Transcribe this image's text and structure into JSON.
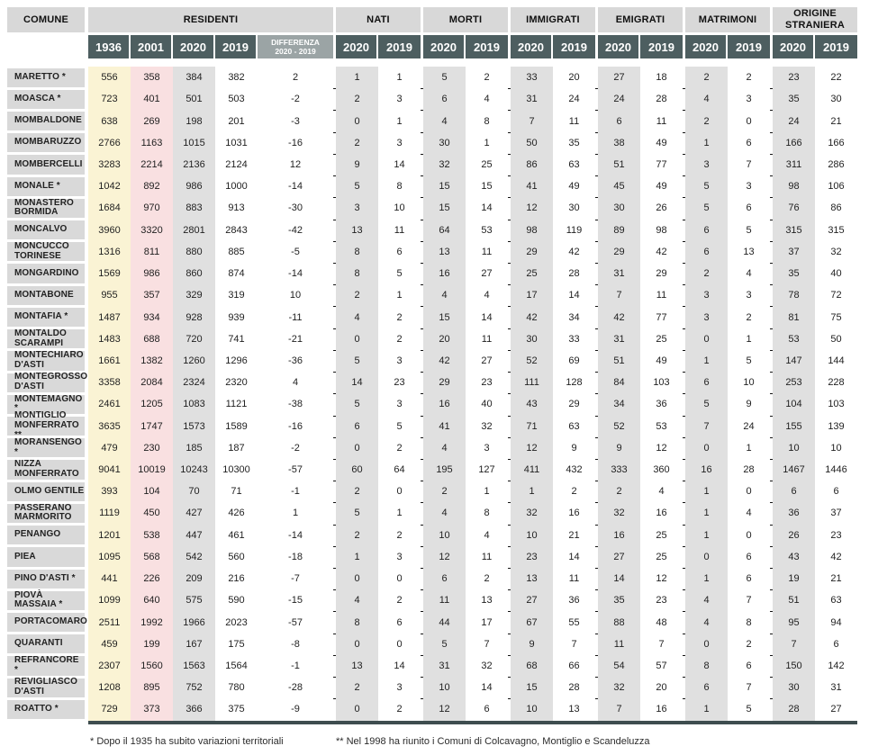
{
  "header": {
    "comune_label": "COMUNE",
    "groups": [
      {
        "label": "RESIDENTI",
        "years": [
          "1936",
          "2001",
          "2020",
          "2019"
        ],
        "diff_line1": "DIFFERENZA",
        "diff_line2": "2020 - 2019"
      },
      {
        "label": "NATI",
        "years": [
          "2020",
          "2019"
        ]
      },
      {
        "label": "MORTI",
        "years": [
          "2020",
          "2019"
        ]
      },
      {
        "label": "IMMIGRATI",
        "years": [
          "2020",
          "2019"
        ]
      },
      {
        "label": "EMIGRATI",
        "years": [
          "2020",
          "2019"
        ]
      },
      {
        "label": "MATRIMONI",
        "years": [
          "2020",
          "2019"
        ]
      },
      {
        "label": "ORIGINE STRANIERA",
        "years": [
          "2020",
          "2019"
        ]
      }
    ]
  },
  "rows": [
    {
      "comune": "MARETTO *",
      "values": [
        556,
        358,
        384,
        382,
        2,
        1,
        1,
        5,
        2,
        33,
        20,
        27,
        18,
        2,
        2,
        23,
        22
      ]
    },
    {
      "comune": "MOASCA *",
      "values": [
        723,
        401,
        501,
        503,
        -2,
        2,
        3,
        6,
        4,
        31,
        24,
        24,
        28,
        4,
        3,
        35,
        30
      ]
    },
    {
      "comune": "MOMBALDONE",
      "values": [
        638,
        269,
        198,
        201,
        -3,
        0,
        1,
        4,
        8,
        7,
        11,
        6,
        11,
        2,
        0,
        24,
        21
      ]
    },
    {
      "comune": "MOMBARUZZO",
      "values": [
        2766,
        1163,
        1015,
        1031,
        -16,
        2,
        3,
        30,
        1,
        50,
        35,
        38,
        49,
        1,
        6,
        166,
        166
      ]
    },
    {
      "comune": "MOMBERCELLI",
      "values": [
        3283,
        2214,
        2136,
        2124,
        12,
        9,
        14,
        32,
        25,
        86,
        63,
        51,
        77,
        3,
        7,
        311,
        286
      ]
    },
    {
      "comune": "MONALE *",
      "values": [
        1042,
        892,
        986,
        1000,
        -14,
        5,
        8,
        15,
        15,
        41,
        49,
        45,
        49,
        5,
        3,
        98,
        106
      ]
    },
    {
      "comune": "MONASTERO BORMIDA",
      "values": [
        1684,
        970,
        883,
        913,
        -30,
        3,
        10,
        15,
        14,
        12,
        30,
        30,
        26,
        5,
        6,
        76,
        86
      ]
    },
    {
      "comune": "MONCALVO",
      "values": [
        3960,
        3320,
        2801,
        2843,
        -42,
        13,
        11,
        64,
        53,
        98,
        119,
        89,
        98,
        6,
        5,
        315,
        315
      ]
    },
    {
      "comune": "MONCUCCO TORINESE",
      "values": [
        1316,
        811,
        880,
        885,
        -5,
        8,
        6,
        13,
        11,
        29,
        42,
        29,
        42,
        6,
        13,
        37,
        32
      ]
    },
    {
      "comune": "MONGARDINO",
      "values": [
        1569,
        986,
        860,
        874,
        -14,
        8,
        5,
        16,
        27,
        25,
        28,
        31,
        29,
        2,
        4,
        35,
        40
      ]
    },
    {
      "comune": "MONTABONE",
      "values": [
        955,
        357,
        329,
        319,
        10,
        2,
        1,
        4,
        4,
        17,
        14,
        7,
        11,
        3,
        3,
        78,
        72
      ]
    },
    {
      "comune": "MONTAFIA *",
      "values": [
        1487,
        934,
        928,
        939,
        -11,
        4,
        2,
        15,
        14,
        42,
        34,
        42,
        77,
        3,
        2,
        81,
        75
      ]
    },
    {
      "comune": "MONTALDO SCARAMPI",
      "values": [
        1483,
        688,
        720,
        741,
        -21,
        0,
        2,
        20,
        11,
        30,
        33,
        31,
        25,
        0,
        1,
        53,
        50
      ]
    },
    {
      "comune": "MONTECHIARO D'ASTI",
      "values": [
        1661,
        1382,
        1260,
        1296,
        -36,
        5,
        3,
        42,
        27,
        52,
        69,
        51,
        49,
        1,
        5,
        147,
        144
      ]
    },
    {
      "comune": "MONTEGROSSO D'ASTI",
      "values": [
        3358,
        2084,
        2324,
        2320,
        4,
        14,
        23,
        29,
        23,
        111,
        128,
        84,
        103,
        6,
        10,
        253,
        228
      ]
    },
    {
      "comune": "MONTEMAGNO *",
      "values": [
        2461,
        1205,
        1083,
        1121,
        -38,
        5,
        3,
        16,
        40,
        43,
        29,
        34,
        36,
        5,
        9,
        104,
        103
      ]
    },
    {
      "comune": "MONTIGLIO MONFERRATO **",
      "values": [
        3635,
        1747,
        1573,
        1589,
        -16,
        6,
        5,
        41,
        32,
        71,
        63,
        52,
        53,
        7,
        24,
        155,
        139
      ]
    },
    {
      "comune": "MORANSENGO *",
      "values": [
        479,
        230,
        185,
        187,
        -2,
        0,
        2,
        4,
        3,
        12,
        9,
        9,
        12,
        0,
        1,
        10,
        10
      ]
    },
    {
      "comune": "NIZZA MONFERRATO",
      "values": [
        9041,
        10019,
        10243,
        10300,
        -57,
        60,
        64,
        195,
        127,
        411,
        432,
        333,
        360,
        16,
        28,
        1467,
        1446
      ]
    },
    {
      "comune": "OLMO GENTILE",
      "values": [
        393,
        104,
        70,
        71,
        -1,
        2,
        0,
        2,
        1,
        1,
        2,
        2,
        4,
        1,
        0,
        6,
        6
      ]
    },
    {
      "comune": "PASSERANO MARMORITO",
      "values": [
        1119,
        450,
        427,
        426,
        1,
        5,
        1,
        4,
        8,
        32,
        16,
        32,
        16,
        1,
        4,
        36,
        37
      ]
    },
    {
      "comune": "PENANGO",
      "values": [
        1201,
        538,
        447,
        461,
        -14,
        2,
        2,
        10,
        4,
        10,
        21,
        16,
        25,
        1,
        0,
        26,
        23
      ]
    },
    {
      "comune": "PIEA",
      "values": [
        1095,
        568,
        542,
        560,
        -18,
        1,
        3,
        12,
        11,
        23,
        14,
        27,
        25,
        0,
        6,
        43,
        42
      ]
    },
    {
      "comune": "PINO D'ASTI *",
      "values": [
        441,
        226,
        209,
        216,
        -7,
        0,
        0,
        6,
        2,
        13,
        11,
        14,
        12,
        1,
        6,
        19,
        21
      ]
    },
    {
      "comune": "PIOVÀ MASSAIA *",
      "values": [
        1099,
        640,
        575,
        590,
        -15,
        4,
        2,
        11,
        13,
        27,
        36,
        35,
        23,
        4,
        7,
        51,
        63
      ]
    },
    {
      "comune": "PORTACOMARO",
      "values": [
        2511,
        1992,
        1966,
        2023,
        -57,
        8,
        6,
        44,
        17,
        67,
        55,
        88,
        48,
        4,
        8,
        95,
        94
      ]
    },
    {
      "comune": "QUARANTI",
      "values": [
        459,
        199,
        167,
        175,
        -8,
        0,
        0,
        5,
        7,
        9,
        7,
        11,
        7,
        0,
        2,
        7,
        6
      ]
    },
    {
      "comune": "REFRANCORE *",
      "values": [
        2307,
        1560,
        1563,
        1564,
        -1,
        13,
        14,
        31,
        32,
        68,
        66,
        54,
        57,
        8,
        6,
        150,
        142
      ]
    },
    {
      "comune": "REVIGLIASCO D'ASTI",
      "values": [
        1208,
        895,
        752,
        780,
        -28,
        2,
        3,
        10,
        14,
        15,
        28,
        32,
        20,
        6,
        7,
        30,
        31
      ]
    },
    {
      "comune": "ROATTO *",
      "values": [
        729,
        373,
        366,
        375,
        -9,
        0,
        2,
        12,
        6,
        10,
        13,
        7,
        16,
        1,
        5,
        28,
        27
      ]
    }
  ],
  "footnotes": [
    "* Dopo il 1935 ha subito variazioni territoriali",
    "** Nel 1998 ha riunito i Comuni di Colcavagno, Montiglio e Scandeluzza"
  ],
  "colors": {
    "header_dark": "#4d5e60",
    "header_diff": "#9ba4a5",
    "header_light": "#d8d8d8",
    "col_1936": "#faf3d4",
    "col_2001": "#f9e0e1",
    "col_2020": "#e0e0e0",
    "row_line": "#141414",
    "bottom_bar": "#3e4d4f"
  }
}
